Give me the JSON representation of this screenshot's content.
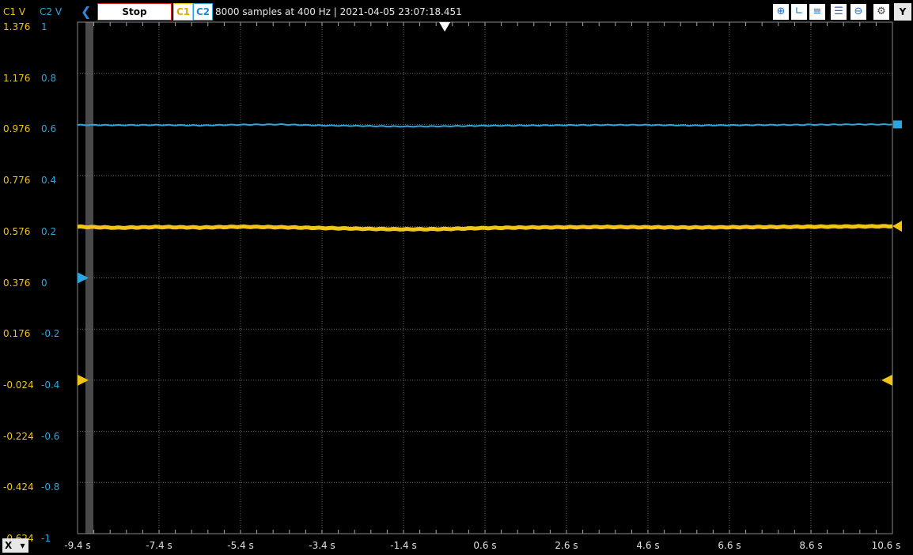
{
  "toolbar": {
    "c1_axis_label": "C1 V",
    "c2_axis_label": "C2 V",
    "stop_label": "Stop",
    "c1_button": "C1",
    "c2_button": "C2",
    "info": "8000 samples at 400 Hz | 2021-04-05 23:07:18.451",
    "y_button": "Y",
    "tools": [
      "zoom-in-icon",
      "cursor-icon",
      "cursor-horizontal-icon",
      "cursor-list-icon",
      "zoom-out-icon",
      "settings-icon"
    ]
  },
  "x_menu_label": "X",
  "chart_data": {
    "type": "line",
    "x_unit": "s",
    "xlim": [
      -9.4,
      10.6
    ],
    "x_ticks": [
      "-9.4 s",
      "-7.4 s",
      "-5.4 s",
      "-3.4 s",
      "-1.4 s",
      "0.6 s",
      "2.6 s",
      "4.6 s",
      "6.6 s",
      "8.6 s",
      "10.6 s"
    ],
    "c1_ticks": [
      "1.376",
      "1.176",
      "0.976",
      "0.776",
      "0.576",
      "0.376",
      "0.176",
      "-0.024",
      "-0.224",
      "-0.424",
      "-0.624"
    ],
    "c2_ticks": [
      "1",
      "0.8",
      "0.6",
      "0.4",
      "0.2",
      "0",
      "-0.2",
      "-0.4",
      "-0.6",
      "-0.8",
      "-1"
    ],
    "c1_ylim": [
      -0.624,
      1.376
    ],
    "c2_ylim": [
      -1,
      1
    ],
    "grid": true,
    "series": [
      {
        "channel": "C1",
        "color": "#f0c419",
        "x": [
          -9.4,
          -8.4,
          -7.4,
          -6.4,
          -5.4,
          -4.4,
          -3.4,
          -2.4,
          -1.4,
          -0.4,
          0.6,
          1.6,
          2.6,
          3.6,
          4.6,
          5.6,
          6.6,
          7.6,
          8.6,
          9.6,
          10.6
        ],
        "y": [
          0.576,
          0.572,
          0.575,
          0.573,
          0.576,
          0.574,
          0.571,
          0.568,
          0.566,
          0.567,
          0.571,
          0.573,
          0.574,
          0.575,
          0.574,
          0.573,
          0.574,
          0.575,
          0.576,
          0.577,
          0.578
        ]
      },
      {
        "channel": "C2",
        "color": "#2aa7e0",
        "x": [
          -9.4,
          -8.4,
          -7.4,
          -6.4,
          -5.4,
          -4.4,
          -3.4,
          -2.4,
          -1.4,
          -0.4,
          0.6,
          1.6,
          2.6,
          3.6,
          4.6,
          5.6,
          6.6,
          7.6,
          8.6,
          9.6,
          10.6
        ],
        "y": [
          0.598,
          0.597,
          0.598,
          0.596,
          0.599,
          0.6,
          0.596,
          0.594,
          0.592,
          0.593,
          0.595,
          0.596,
          0.597,
          0.598,
          0.598,
          0.596,
          0.597,
          0.598,
          0.599,
          0.6,
          0.6
        ]
      }
    ],
    "markers": {
      "c2_zero": 0,
      "c1_trigger": -0.024,
      "trigger_time": 0
    }
  }
}
